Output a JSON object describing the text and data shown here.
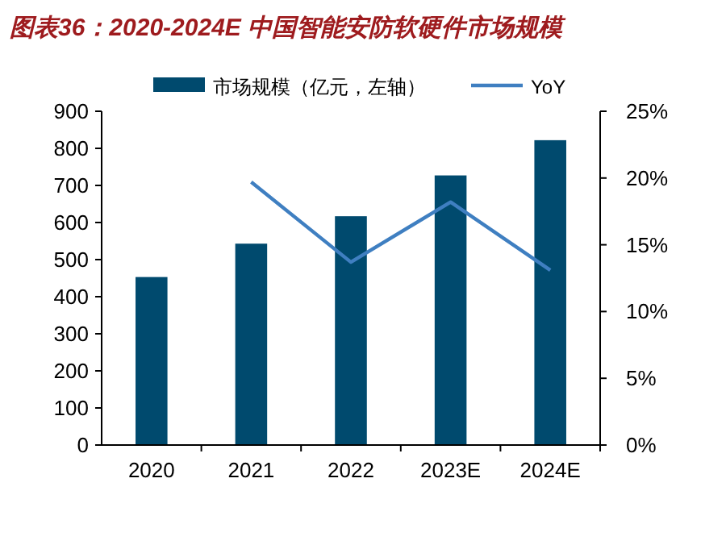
{
  "chart_data": {
    "type": "bar",
    "title": "图表36：2020-2024E 中国智能安防软硬件市场规模",
    "categories": [
      "2020",
      "2021",
      "2022",
      "2023E",
      "2024E"
    ],
    "series": [
      {
        "name": "市场规模（亿元，左轴）",
        "color": "#004a6e",
        "values": [
          453,
          543,
          617,
          727,
          822
        ]
      },
      {
        "name": "YoY",
        "type": "line",
        "axis": "y2",
        "color": "#3f7fc1",
        "values": [
          null,
          19.7,
          13.7,
          18.2,
          13.1
        ]
      }
    ],
    "ylim": [
      0,
      900
    ],
    "yticks": [
      0,
      100,
      200,
      300,
      400,
      500,
      600,
      700,
      800,
      900
    ],
    "y2lim": [
      0,
      25
    ],
    "y2ticks": [
      {
        "value": 0,
        "label": "0%"
      },
      {
        "value": 5,
        "label": "5%"
      },
      {
        "value": 10,
        "label": "10%"
      },
      {
        "value": 15,
        "label": "15%"
      },
      {
        "value": 20,
        "label": "20%"
      },
      {
        "value": 25,
        "label": "25%"
      }
    ],
    "grid": false,
    "legend": "top",
    "marker": "none",
    "line_style": "solid"
  }
}
